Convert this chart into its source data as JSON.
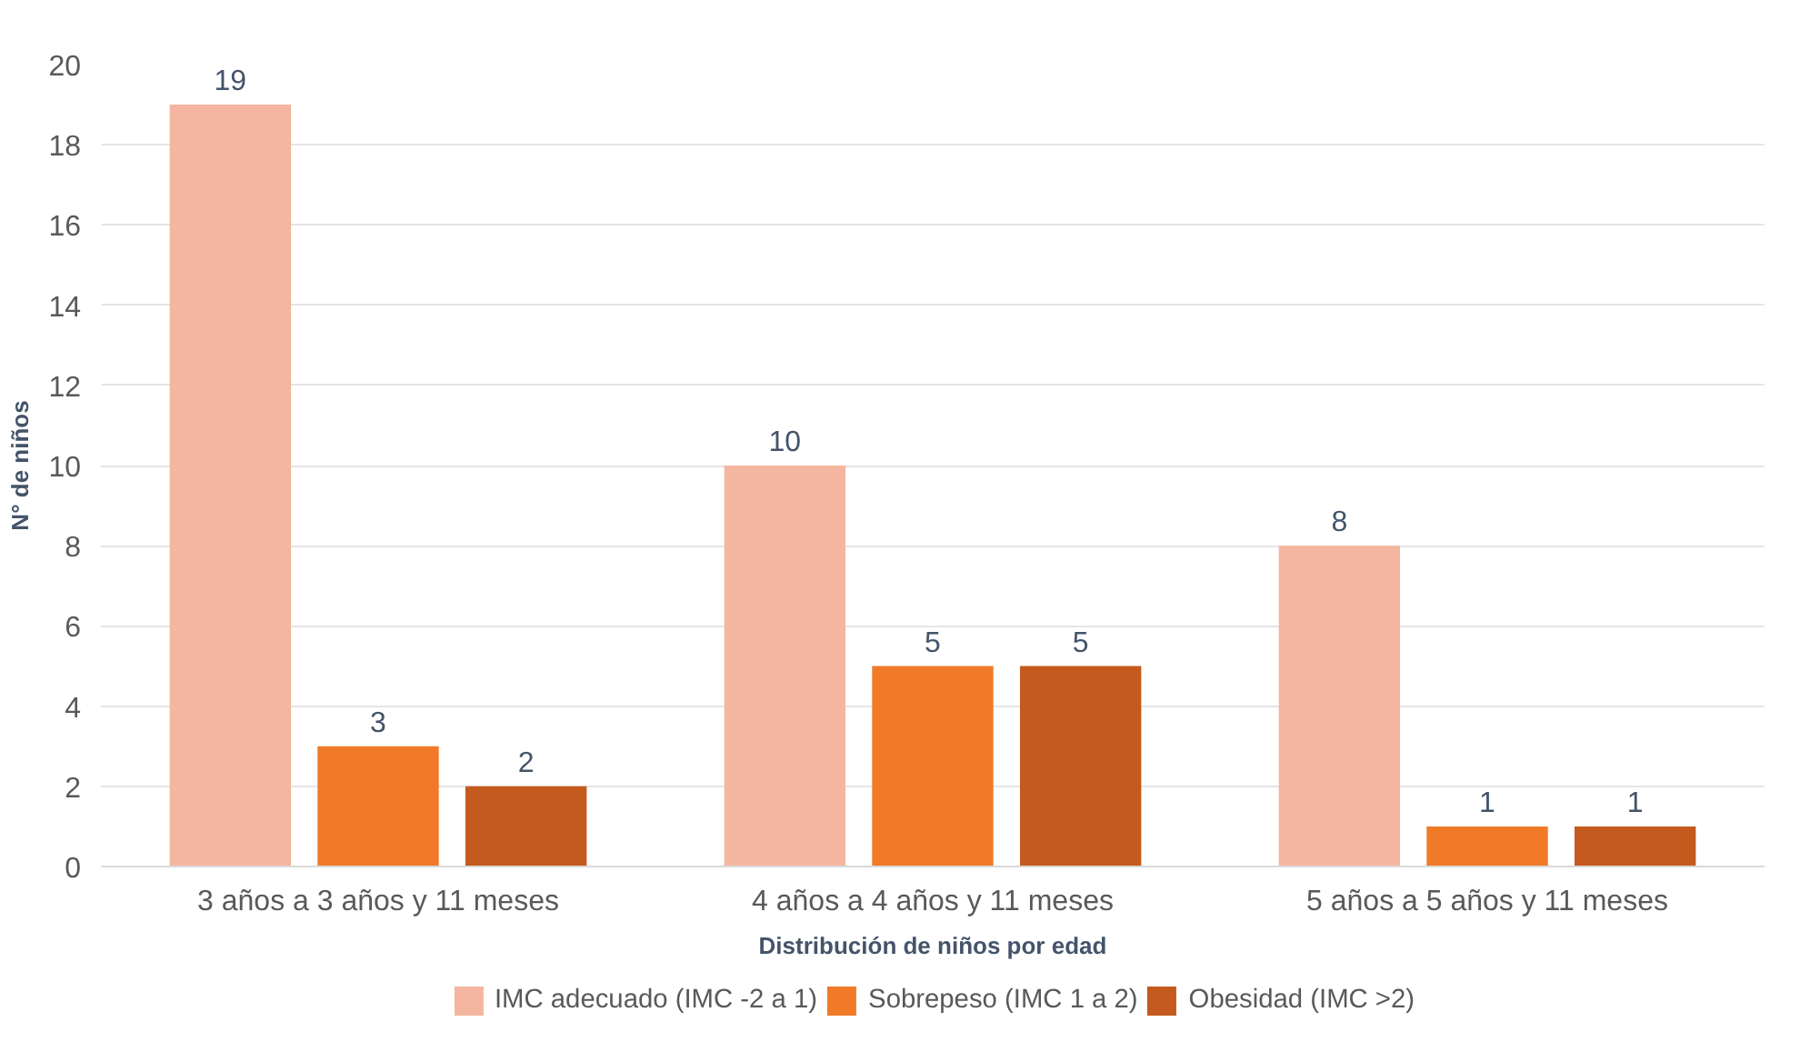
{
  "chart_data": {
    "type": "bar",
    "xlabel": "Distribución de niños por edad",
    "ylabel": "N° de niños",
    "categories": [
      "3 años a 3 años y 11 meses",
      "4 años a 4 años y 11 meses",
      "5 años a 5 años y 11 meses"
    ],
    "series": [
      {
        "name": "IMC adecuado (IMC -2 a 1)",
        "color": "#f4b6a0",
        "values": [
          19,
          10,
          8
        ]
      },
      {
        "name": "Sobrepeso (IMC 1 a 2)",
        "color": "#f07a28",
        "values": [
          3,
          5,
          1
        ]
      },
      {
        "name": "Obesidad (IMC >2)",
        "color": "#c45a1e",
        "values": [
          2,
          5,
          1
        ]
      }
    ],
    "ylim": [
      0,
      20
    ],
    "yticks": [
      0,
      2,
      4,
      6,
      8,
      10,
      12,
      14,
      16,
      18,
      20
    ],
    "grid": "y",
    "legend": "bottom",
    "data_labels": true
  }
}
